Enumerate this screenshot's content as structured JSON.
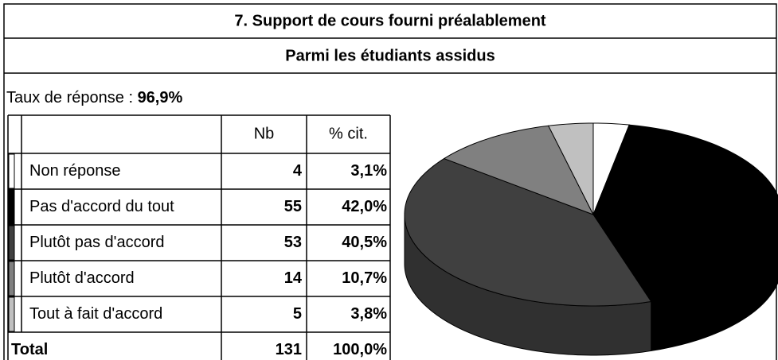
{
  "title": "7. Support de cours fourni préalablement",
  "subtitle": "Parmi les étudiants assidus",
  "response_rate": {
    "label": "Taux de réponse :",
    "value": "96,9%"
  },
  "table": {
    "columns": [
      "Nb",
      "% cit."
    ],
    "total": {
      "label": "Total",
      "nb": 131,
      "pct": "100,0%"
    }
  },
  "chart_data": {
    "type": "pie",
    "categories": [
      "Non réponse",
      "Pas d'accord du tout",
      "Plutôt pas d'accord",
      "Plutôt d'accord",
      "Tout à fait d'accord"
    ],
    "values": [
      4,
      55,
      53,
      14,
      5
    ],
    "value_labels": [
      "3,1%",
      "42,0%",
      "40,5%",
      "10,7%",
      "3,8%"
    ],
    "colors": [
      "#ffffff",
      "#000000",
      "#404040",
      "#808080",
      "#c0c0c0"
    ]
  }
}
